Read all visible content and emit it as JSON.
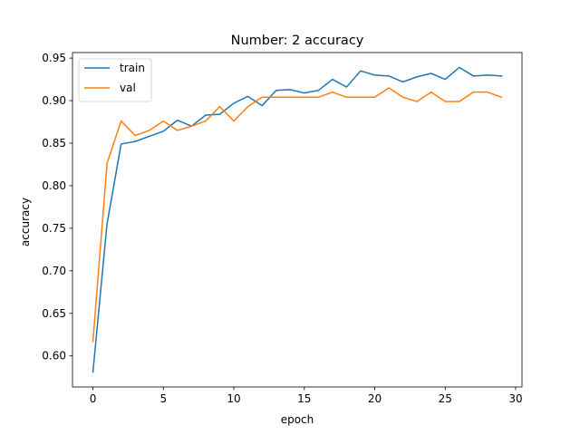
{
  "chart_data": {
    "type": "line",
    "title": "Number: 2 accuracy",
    "xlabel": "epoch",
    "ylabel": "accuracy",
    "xlim": [
      -1.45,
      30.45
    ],
    "ylim": [
      0.5635,
      0.9565
    ],
    "xticks": [
      0,
      5,
      10,
      15,
      20,
      25,
      30
    ],
    "yticks": [
      0.6,
      0.65,
      0.7,
      0.75,
      0.8,
      0.85,
      0.9,
      0.95
    ],
    "grid": false,
    "legend_position": "top-left",
    "x": [
      0,
      1,
      2,
      3,
      4,
      5,
      6,
      7,
      8,
      9,
      10,
      11,
      12,
      13,
      14,
      15,
      16,
      17,
      18,
      19,
      20,
      21,
      22,
      23,
      24,
      25,
      26,
      27,
      28,
      29
    ],
    "series": [
      {
        "name": "train",
        "color": "#1f77b4",
        "values": [
          0.581,
          0.755,
          0.849,
          0.852,
          0.858,
          0.864,
          0.877,
          0.87,
          0.883,
          0.884,
          0.897,
          0.905,
          0.894,
          0.912,
          0.913,
          0.909,
          0.912,
          0.925,
          0.916,
          0.935,
          0.93,
          0.929,
          0.922,
          0.928,
          0.932,
          0.925,
          0.939,
          0.929,
          0.93,
          0.929
        ]
      },
      {
        "name": "val",
        "color": "#ff7f0e",
        "values": [
          0.617,
          0.826,
          0.876,
          0.859,
          0.865,
          0.876,
          0.865,
          0.87,
          0.876,
          0.893,
          0.876,
          0.893,
          0.904,
          0.904,
          0.904,
          0.904,
          0.904,
          0.91,
          0.904,
          0.904,
          0.904,
          0.915,
          0.904,
          0.899,
          0.91,
          0.899,
          0.899,
          0.91,
          0.91,
          0.904
        ]
      }
    ]
  }
}
